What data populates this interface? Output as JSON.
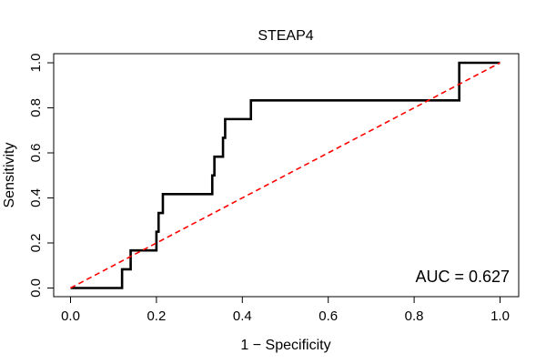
{
  "chart_data": {
    "type": "line",
    "title": "STEAP4",
    "xlabel": "1 − Specificity",
    "ylabel": "Sensitivity",
    "xlim": [
      0,
      1
    ],
    "ylim": [
      0,
      1
    ],
    "xticks": [
      0,
      0.2,
      0.4,
      0.6,
      0.8,
      1
    ],
    "xtick_labels": [
      "0.0",
      "0.2",
      "0.4",
      "0.6",
      "0.8",
      "1.0"
    ],
    "yticks": [
      0,
      0.2,
      0.4,
      0.6,
      0.8,
      1
    ],
    "ytick_labels": [
      "0.0",
      "0.2",
      "0.4",
      "0.6",
      "0.8",
      "1.0"
    ],
    "grid": false,
    "legend": "none",
    "series": [
      {
        "name": "ROC curve",
        "color": "#000000",
        "style": "solid",
        "x": [
          0.0,
          0.12,
          0.12,
          0.14,
          0.14,
          0.2,
          0.2,
          0.205,
          0.205,
          0.215,
          0.215,
          0.33,
          0.33,
          0.335,
          0.335,
          0.355,
          0.355,
          0.36,
          0.36,
          0.42,
          0.42,
          0.905,
          0.905,
          1.0
        ],
        "y": [
          0.0,
          0.0,
          0.083,
          0.083,
          0.167,
          0.167,
          0.25,
          0.25,
          0.333,
          0.333,
          0.417,
          0.417,
          0.5,
          0.5,
          0.583,
          0.583,
          0.667,
          0.667,
          0.75,
          0.75,
          0.833,
          0.833,
          1.0,
          1.0
        ]
      },
      {
        "name": "Chance line",
        "color": "#ff0000",
        "style": "dashed",
        "x": [
          0,
          1
        ],
        "y": [
          0,
          1
        ]
      }
    ],
    "annotation": "AUC = 0.627"
  }
}
